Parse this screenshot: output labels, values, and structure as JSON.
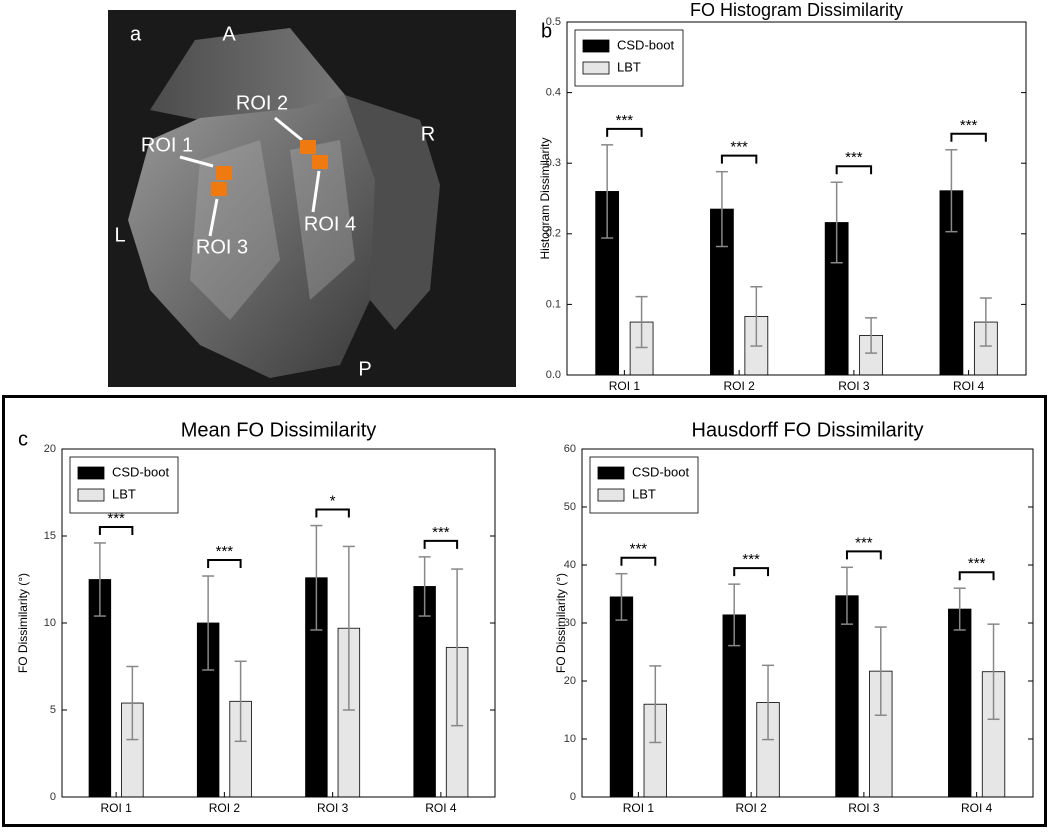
{
  "figure_labels": [
    "a",
    "b",
    "c"
  ],
  "image": {
    "orientation_labels": [
      "A",
      "R",
      "P",
      "L"
    ],
    "roi_labels": [
      "ROI 1",
      "ROI 2",
      "ROI 3",
      "ROI 4"
    ]
  },
  "chart_data": [
    {
      "type": "bar",
      "title": "FO Histogram Dissimilarity",
      "y_label": "Histogram Dissimilarity",
      "categories": [
        "ROI 1",
        "ROI 2",
        "ROI 3",
        "ROI 4"
      ],
      "series": [
        {
          "name": "CSD-boot",
          "color": "#000000",
          "values": [
            0.26,
            0.235,
            0.216,
            0.261
          ],
          "errors": [
            0.066,
            0.053,
            0.057,
            0.058
          ]
        },
        {
          "name": "LBT",
          "color": "#e6e6e6",
          "values": [
            0.075,
            0.083,
            0.056,
            0.075
          ],
          "errors": [
            0.036,
            0.042,
            0.025,
            0.034
          ]
        }
      ],
      "annotations": [
        "***",
        "***",
        "***",
        "***"
      ],
      "ylim": [
        0,
        0.5
      ],
      "yticks": [
        {
          "value": 0,
          "label": "0.0"
        },
        0.1,
        0.2,
        0.3,
        0.4,
        0.5
      ],
      "legend": "upper left",
      "error_color": "#888888"
    },
    {
      "type": "bar",
      "title": "Mean FO Dissimilarity",
      "y_label": "FO Dissimilarity (°)",
      "categories": [
        "ROI 1",
        "ROI 2",
        "ROI 3",
        "ROI 4"
      ],
      "series": [
        {
          "name": "CSD-boot",
          "color": "#000000",
          "values": [
            12.5,
            10.0,
            12.6,
            12.1
          ],
          "errors": [
            2.1,
            2.7,
            3.0,
            1.7
          ]
        },
        {
          "name": "LBT",
          "color": "#e6e6e6",
          "values": [
            5.4,
            5.5,
            9.7,
            8.6
          ],
          "errors": [
            2.1,
            2.3,
            4.7,
            4.5
          ]
        }
      ],
      "annotations": [
        "***",
        "***",
        "*",
        "***"
      ],
      "ylim": [
        0,
        20
      ],
      "yticks": [
        0,
        5,
        10,
        15,
        20
      ],
      "legend": "upper left",
      "error_color": "#888888"
    },
    {
      "type": "bar",
      "title": "Hausdorff FO Dissimilarity",
      "y_label": "FO Dissimilarity (°)",
      "categories": [
        "ROI 1",
        "ROI 2",
        "ROI 3",
        "ROI 4"
      ],
      "series": [
        {
          "name": "CSD-boot",
          "color": "#000000",
          "values": [
            34.5,
            31.4,
            34.7,
            32.4
          ],
          "errors": [
            4.0,
            5.3,
            4.9,
            3.6
          ]
        },
        {
          "name": "LBT",
          "color": "#e6e6e6",
          "values": [
            16.0,
            16.3,
            21.7,
            21.6
          ],
          "errors": [
            6.6,
            6.4,
            7.6,
            8.2
          ]
        }
      ],
      "annotations": [
        "***",
        "***",
        "***",
        "***"
      ],
      "ylim": [
        0,
        60
      ],
      "yticks": [
        0,
        10,
        20,
        30,
        40,
        50,
        60
      ],
      "legend": "upper left",
      "error_color": "#888888"
    }
  ]
}
